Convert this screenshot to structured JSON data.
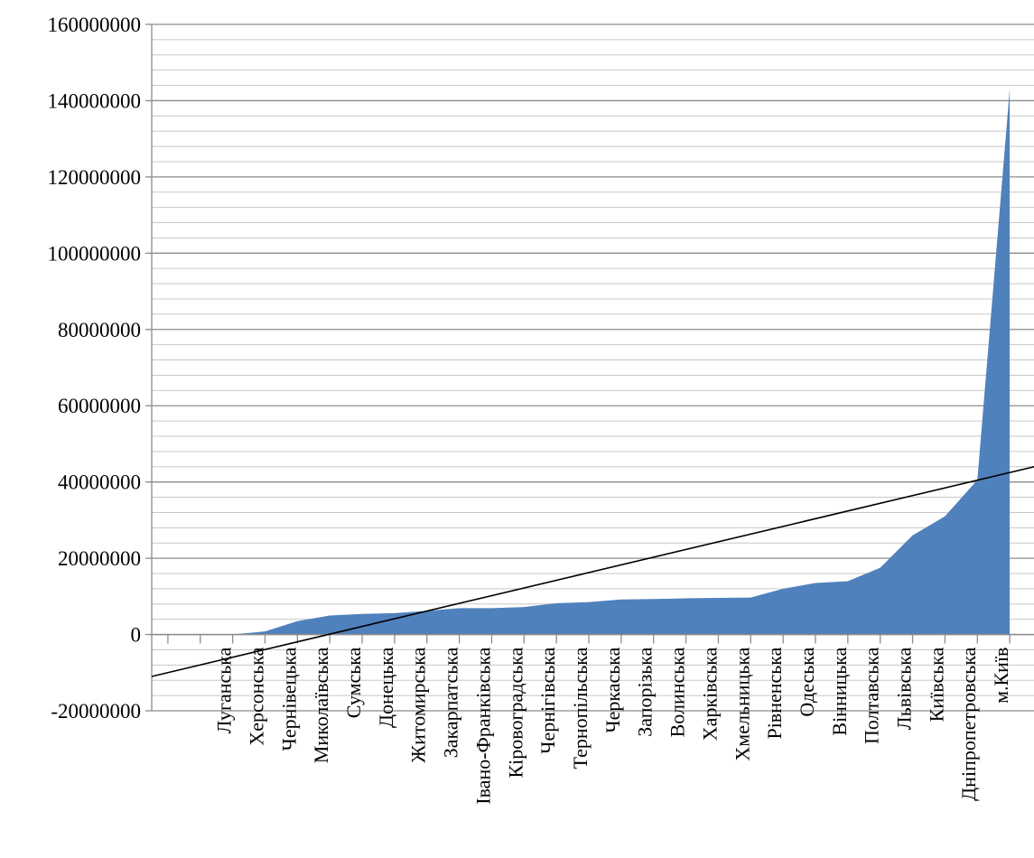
{
  "chart_data": {
    "type": "area",
    "title": "",
    "xlabel": "",
    "ylabel": "",
    "ylim": [
      -20000000,
      160000000
    ],
    "y_ticks": [
      "160000000",
      "140000000",
      "120000000",
      "100000000",
      "80000000",
      "60000000",
      "40000000",
      "20000000",
      "0",
      "-20000000"
    ],
    "y_tick_values": [
      160000000,
      140000000,
      120000000,
      100000000,
      80000000,
      60000000,
      40000000,
      20000000,
      0,
      -20000000
    ],
    "categories": [
      "Луганська",
      "Херсонська",
      "Чернівецька",
      "Миколаївська",
      "Сумська",
      "Донецька",
      "Житомирська",
      "Закарпатська",
      "Івано-Франківська",
      "Кіровоградська",
      "Чернігівська",
      "Тернопільська",
      "Черкаська",
      "Запорізька",
      "Волинська",
      "Харківська",
      "Хмельницька",
      "Рівненська",
      "Одеська",
      "Вінницька",
      "Полтавська",
      "Львівська",
      "Київська",
      "Дніпропетровська",
      "м.Київ"
    ],
    "values": [
      0,
      800000,
      3500000,
      5000000,
      5400000,
      5600000,
      6200000,
      6900000,
      6900000,
      7200000,
      8200000,
      8500000,
      9200000,
      9300000,
      9500000,
      9600000,
      9700000,
      12000000,
      13500000,
      14000000,
      17500000,
      26000000,
      31000000,
      40500000,
      143000000
    ],
    "area_color": "#4f81bd",
    "trendline": {
      "type": "linear",
      "color": "#000000",
      "start_value": -11000000,
      "end_value": 44000000
    },
    "grid": "horizontal major and minor",
    "legend": "none"
  }
}
